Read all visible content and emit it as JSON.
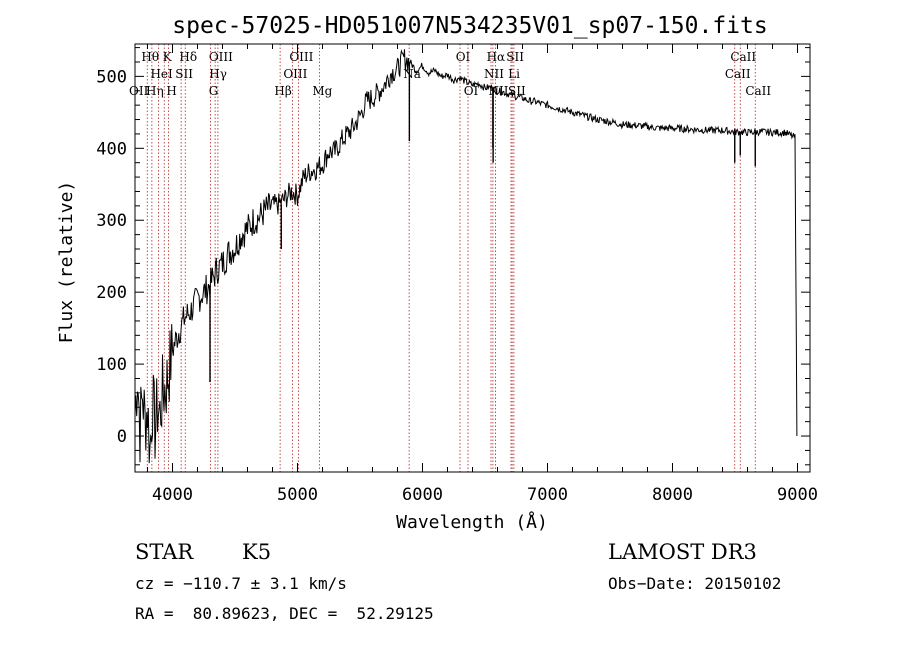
{
  "chart_data": {
    "type": "line",
    "title": "spec-57025-HD051007N534235V01_sp07-150.fits",
    "xlabel": "Wavelength (Å)",
    "ylabel": "Flux (relative)",
    "xlim": [
      3700,
      9100
    ],
    "ylim": [
      -50,
      545
    ],
    "xticks": [
      4000,
      5000,
      6000,
      7000,
      8000,
      9000
    ],
    "yticks": [
      0,
      100,
      200,
      300,
      400,
      500
    ],
    "series": [
      {
        "name": "flux",
        "points": [
          [
            3700,
            30
          ],
          [
            3720,
            90
          ],
          [
            3740,
            10
          ],
          [
            3760,
            60
          ],
          [
            3780,
            20
          ],
          [
            3800,
            40
          ],
          [
            3820,
            -20
          ],
          [
            3840,
            50
          ],
          [
            3860,
            10
          ],
          [
            3880,
            40
          ],
          [
            3900,
            30
          ],
          [
            3920,
            60
          ],
          [
            3950,
            70
          ],
          [
            3980,
            100
          ],
          [
            4000,
            120
          ],
          [
            4050,
            145
          ],
          [
            4100,
            165
          ],
          [
            4150,
            175
          ],
          [
            4200,
            190
          ],
          [
            4250,
            200
          ],
          [
            4300,
            210
          ],
          [
            4350,
            230
          ],
          [
            4400,
            240
          ],
          [
            4450,
            255
          ],
          [
            4500,
            262
          ],
          [
            4550,
            280
          ],
          [
            4600,
            288
          ],
          [
            4650,
            300
          ],
          [
            4700,
            305
          ],
          [
            4750,
            315
          ],
          [
            4800,
            320
          ],
          [
            4850,
            322
          ],
          [
            4900,
            330
          ],
          [
            4950,
            340
          ],
          [
            5000,
            335
          ],
          [
            5050,
            360
          ],
          [
            5100,
            368
          ],
          [
            5150,
            372
          ],
          [
            5200,
            378
          ],
          [
            5250,
            395
          ],
          [
            5300,
            395
          ],
          [
            5350,
            410
          ],
          [
            5400,
            420
          ],
          [
            5450,
            430
          ],
          [
            5500,
            445
          ],
          [
            5550,
            465
          ],
          [
            5600,
            470
          ],
          [
            5650,
            478
          ],
          [
            5700,
            490
          ],
          [
            5750,
            505
          ],
          [
            5800,
            510
          ],
          [
            5850,
            525
          ],
          [
            5900,
            520
          ],
          [
            5950,
            508
          ],
          [
            6000,
            515
          ],
          [
            6050,
            505
          ],
          [
            6100,
            508
          ],
          [
            6150,
            500
          ],
          [
            6200,
            502
          ],
          [
            6250,
            495
          ],
          [
            6300,
            498
          ],
          [
            6350,
            492
          ],
          [
            6400,
            488
          ],
          [
            6450,
            490
          ],
          [
            6500,
            484
          ],
          [
            6550,
            485
          ],
          [
            6600,
            480
          ],
          [
            6650,
            478
          ],
          [
            6700,
            475
          ],
          [
            6750,
            472
          ],
          [
            6800,
            470
          ],
          [
            6850,
            466
          ],
          [
            6900,
            465
          ],
          [
            6950,
            462
          ],
          [
            7000,
            460
          ],
          [
            7100,
            455
          ],
          [
            7200,
            450
          ],
          [
            7300,
            445
          ],
          [
            7400,
            440
          ],
          [
            7500,
            437
          ],
          [
            7600,
            433
          ],
          [
            7700,
            432
          ],
          [
            7800,
            430
          ],
          [
            7900,
            428
          ],
          [
            8000,
            428
          ],
          [
            8100,
            427
          ],
          [
            8200,
            426
          ],
          [
            8300,
            425
          ],
          [
            8400,
            425
          ],
          [
            8500,
            423
          ],
          [
            8600,
            422
          ],
          [
            8700,
            423
          ],
          [
            8800,
            422
          ],
          [
            8900,
            422
          ],
          [
            8980,
            415
          ],
          [
            8995,
            0
          ]
        ],
        "absorption_dips": [
          [
            4300,
            75
          ],
          [
            4870,
            260
          ],
          [
            5895,
            410
          ],
          [
            6563,
            400
          ],
          [
            6565,
            380
          ],
          [
            8498,
            380
          ],
          [
            8542,
            390
          ],
          [
            8662,
            375
          ]
        ]
      }
    ],
    "lines": [
      {
        "label": "Hθ",
        "wl": 3798,
        "row": 1
      },
      {
        "label": "Hη",
        "wl": 3835,
        "row": 3
      },
      {
        "label": "HeI",
        "wl": 3889,
        "row": 2
      },
      {
        "label": "K",
        "wl": 3934,
        "row": 1
      },
      {
        "label": "H",
        "wl": 3969,
        "row": 3
      },
      {
        "label": "SII",
        "wl": 4069,
        "row": 2
      },
      {
        "label": "Hδ",
        "wl": 4102,
        "row": 1
      },
      {
        "label": "OIII",
        "wl": 4363,
        "row": 1
      },
      {
        "label": "Hγ",
        "wl": 4341,
        "row": 2
      },
      {
        "label": "G",
        "wl": 4304,
        "row": 3
      },
      {
        "label": "Hβ",
        "wl": 4861,
        "row": 3
      },
      {
        "label": "OIII",
        "wl": 5007,
        "row": 1
      },
      {
        "label": "OIII",
        "wl": 4959,
        "row": 2
      },
      {
        "label": "Mg",
        "wl": 5175,
        "row": 3
      },
      {
        "label": "Na",
        "wl": 5893,
        "row": 2
      },
      {
        "label": "OI",
        "wl": 6300,
        "row": 1
      },
      {
        "label": "OI",
        "wl": 6364,
        "row": 3
      },
      {
        "label": "Hα",
        "wl": 6563,
        "row": 1
      },
      {
        "label": "NII",
        "wl": 6548,
        "row": 2
      },
      {
        "label": "NII",
        "wl": 6584,
        "row": 3
      },
      {
        "label": "SII",
        "wl": 6717,
        "row": 1
      },
      {
        "label": "Li",
        "wl": 6708,
        "row": 2
      },
      {
        "label": "SII",
        "wl": 6731,
        "row": 3
      },
      {
        "label": "CaII",
        "wl": 8542,
        "row": 1
      },
      {
        "label": "CaII",
        "wl": 8498,
        "row": 2
      },
      {
        "label": "CaII",
        "wl": 8662,
        "row": 3
      }
    ],
    "extra_line_labels": [
      "OII"
    ]
  },
  "info": {
    "class_label": "STAR",
    "subclass": "K5",
    "survey": "LAMOST DR3",
    "cz": "cz = −110.7 ± 3.1 km/s",
    "obs_date": "Obs−Date: 20150102",
    "coords": "RA =  80.89623, DEC =  52.29125"
  },
  "colors": {
    "spectrum": "#000000",
    "lines": "#b22222"
  }
}
